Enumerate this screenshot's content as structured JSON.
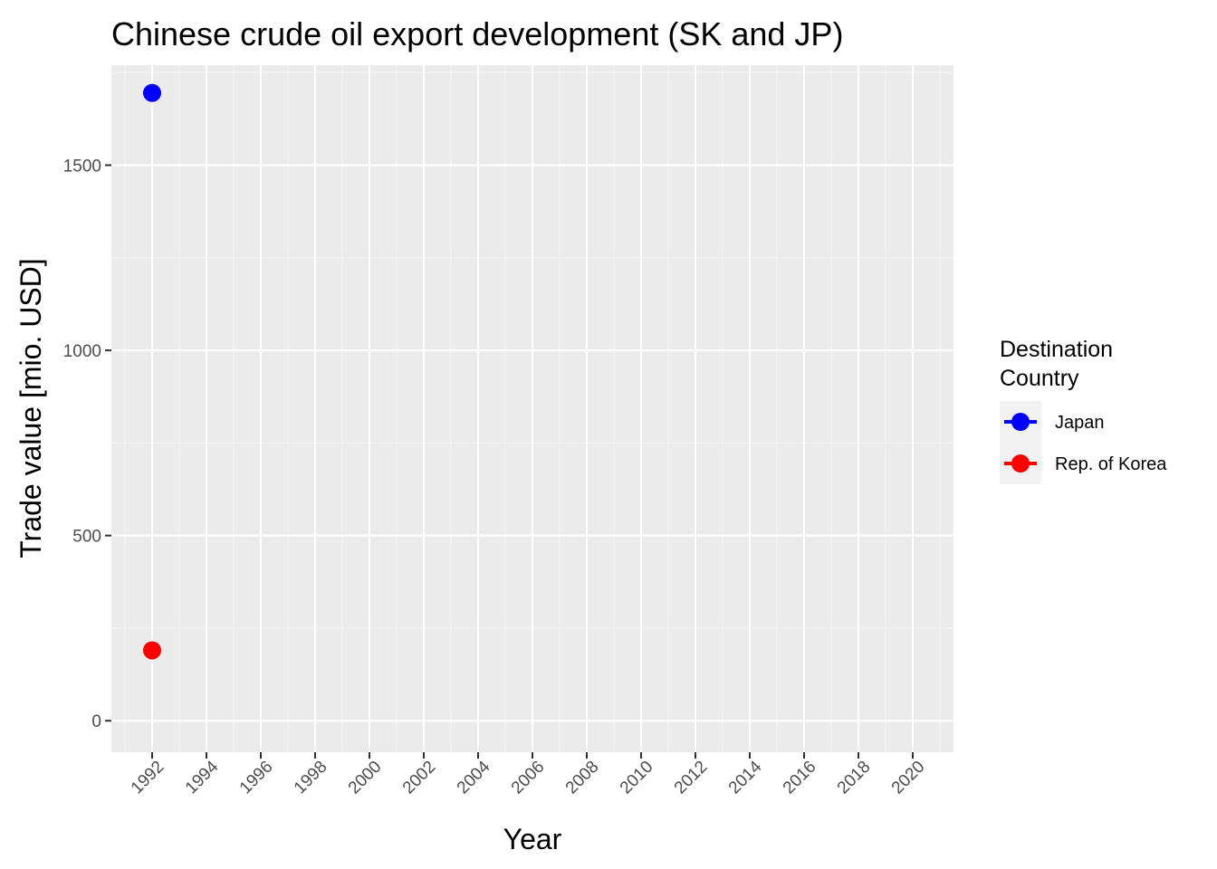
{
  "chart_data": {
    "type": "scatter",
    "title": "Chinese crude oil export development (SK and JP)",
    "xlabel": "Year",
    "ylabel": "Trade value [mio. USD]",
    "xlim": [
      1990.5,
      2021.5
    ],
    "ylim": [
      -85,
      1770
    ],
    "x_ticks": [
      1992,
      1994,
      1996,
      1998,
      2000,
      2002,
      2004,
      2006,
      2008,
      2010,
      2012,
      2014,
      2016,
      2018,
      2020
    ],
    "x_tick_labels": [
      "1992",
      "1994",
      "1996",
      "1998",
      "2000",
      "2002",
      "2004",
      "2006",
      "2008",
      "2010",
      "2012",
      "2014",
      "2016",
      "2018",
      "2020"
    ],
    "y_ticks": [
      0,
      500,
      1000,
      1500
    ],
    "y_tick_labels": [
      "0",
      "500",
      "1000",
      "1500"
    ],
    "grid": true,
    "legend": {
      "title_lines": [
        "Destination",
        "Country"
      ],
      "placement": "right"
    },
    "series": [
      {
        "name": "Japan",
        "color": "#0000ff",
        "points": [
          {
            "x": 1992,
            "y": 1695
          }
        ]
      },
      {
        "name": "Rep. of Korea",
        "color": "#ff0000",
        "points": [
          {
            "x": 1992,
            "y": 190
          }
        ]
      }
    ],
    "colors": {
      "panel": "#ebebeb",
      "grid_major": "#ffffff",
      "grid_minor": "#f6f6f6",
      "axis_text": "#4d4d4d",
      "tick": "#333333"
    }
  }
}
